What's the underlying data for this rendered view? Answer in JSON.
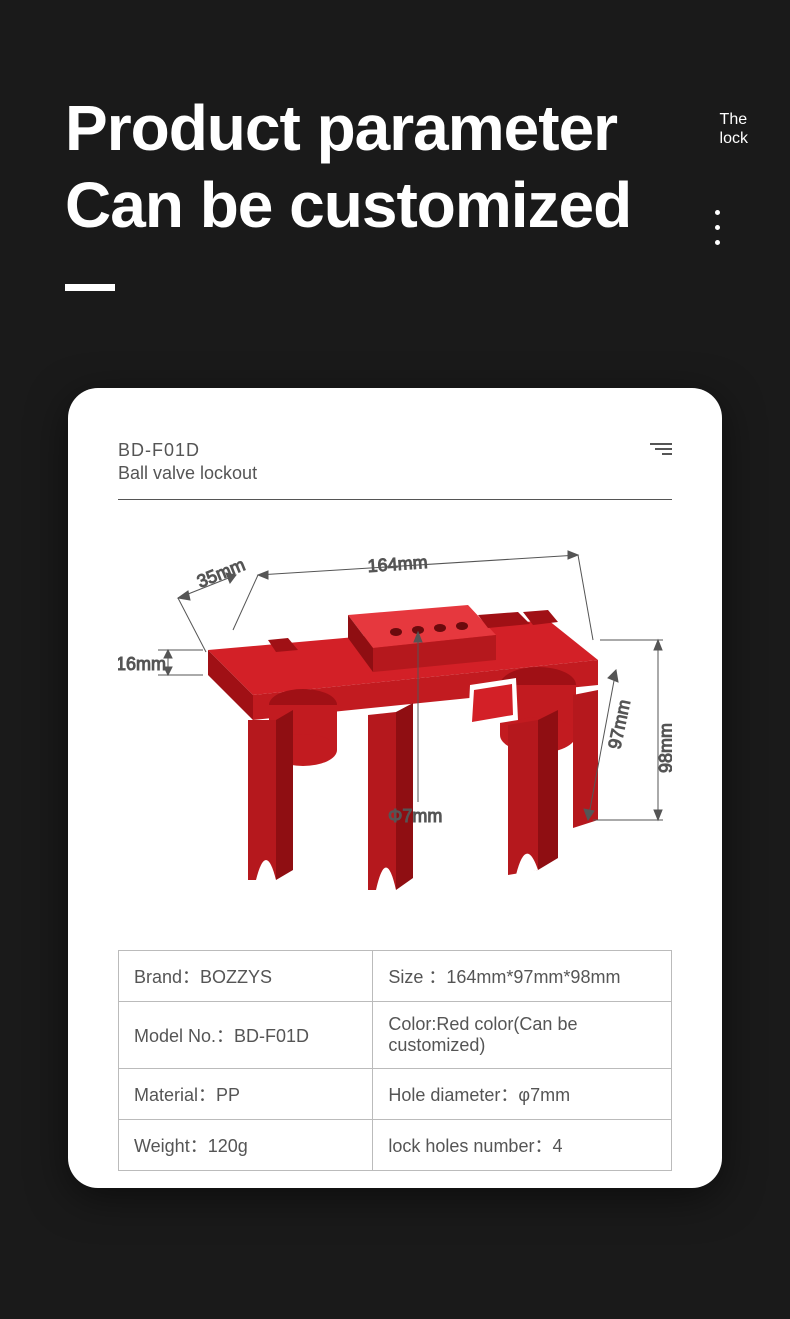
{
  "header": {
    "title_line1": "Product parameter",
    "title_line2": "Can be customized",
    "tag_line1": "The",
    "tag_line2": "lock"
  },
  "card": {
    "code": "BD-F01D",
    "subtitle": "Ball valve lockout"
  },
  "dimensions": {
    "width": "164mm",
    "depth": "35mm",
    "slot": "16mm",
    "hole": "Φ7mm",
    "side": "97mm",
    "height": "98mm"
  },
  "specs": [
    {
      "left": "Brand：BOZZYS",
      "right": "Size ：164mm*97mm*98mm"
    },
    {
      "left": "Model No.：BD-F01D",
      "right": "Color:Red color(Can be customized)"
    },
    {
      "left": "Material：PP",
      "right": "Hole diameter：φ7mm"
    },
    {
      "left": "Weight：120g",
      "right": "lock holes number：4"
    }
  ],
  "style": {
    "bg": "#1a1a1a",
    "card_bg": "#ffffff",
    "product_color": "#d32027",
    "product_shadow": "#a01015",
    "dim_line": "#555555",
    "text_muted": "#555555",
    "title_color": "#ffffff",
    "card_radius": 30,
    "title_fontsize": 64,
    "spec_fontsize": 18,
    "dim_fontsize": 18
  }
}
